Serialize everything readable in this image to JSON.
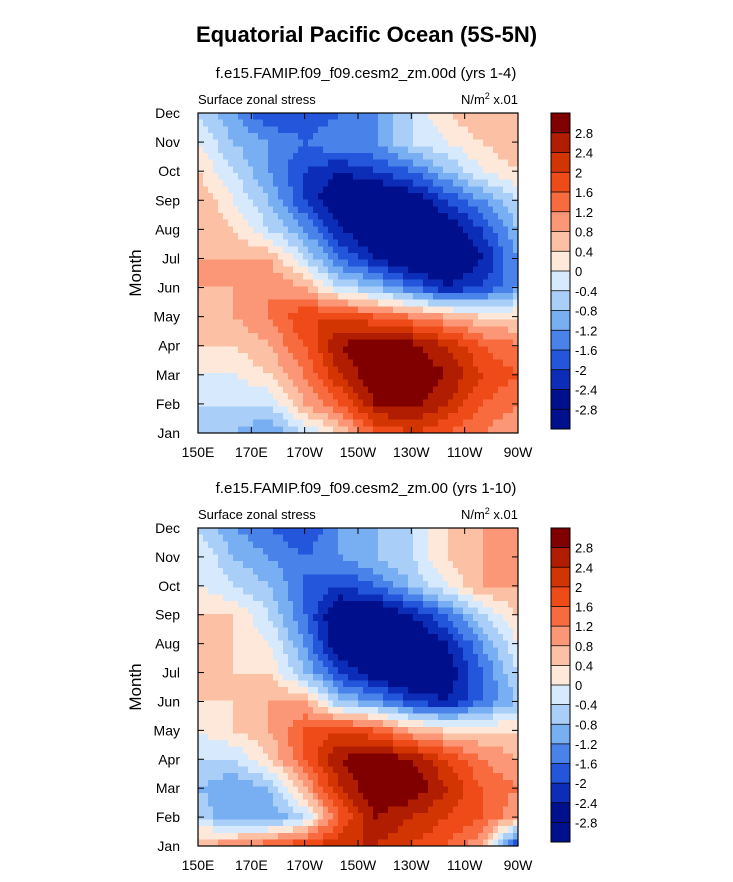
{
  "figure": {
    "title": "Equatorial Pacific Ocean (5S-5N)"
  },
  "chart_data": [
    {
      "type": "heatmap",
      "title": "f.e15.FAMIP.f09_f09.cesm2_zm.00d (yrs 1-4)",
      "left_label": "Surface zonal stress",
      "units_label": "N/m",
      "units_sup": "2",
      "units_suffix": " x.01",
      "ylabel": "Month",
      "xlabel": "",
      "x_ticks": [
        "150E",
        "170E",
        "170W",
        "150W",
        "130W",
        "110W",
        "90W"
      ],
      "y_ticks": [
        "Jan",
        "Feb",
        "Mar",
        "Apr",
        "May",
        "Jun",
        "Jul",
        "Aug",
        "Sep",
        "Oct",
        "Nov",
        "Dec"
      ],
      "legend": {
        "labels": [
          "2.8",
          "2.4",
          "2",
          "1.6",
          "1.2",
          "0.8",
          "0.4",
          "0",
          "-0.4",
          "-0.8",
          "-1.2",
          "-1.6",
          "-2",
          "-2.4",
          "-2.8"
        ],
        "colors": [
          "#800000",
          "#b11d00",
          "#d23502",
          "#ef4b18",
          "#f76b3f",
          "#fb9676",
          "#fcc0a4",
          "#fde8d9",
          "#d7eafd",
          "#a9cff8",
          "#78aef2",
          "#4983ea",
          "#2456dc",
          "#0b2db8",
          "#00108c"
        ],
        "placement": "right"
      },
      "data_values": [
        [
          -0.8,
          -0.8,
          -1.2,
          -0.4,
          0.4,
          1.6,
          2.0,
          1.6,
          1.2,
          0.8
        ],
        [
          -0.4,
          -0.4,
          -0.4,
          0.8,
          1.6,
          2.8,
          3.0,
          2.4,
          1.6,
          1.2
        ],
        [
          0.0,
          0.0,
          0.4,
          1.2,
          2.4,
          3.2,
          3.2,
          2.8,
          2.0,
          1.6
        ],
        [
          0.4,
          0.4,
          0.8,
          1.6,
          2.8,
          3.2,
          3.0,
          2.4,
          1.6,
          1.2
        ],
        [
          0.4,
          0.8,
          1.2,
          2.0,
          2.0,
          1.6,
          1.2,
          0.8,
          0.4,
          0.4
        ],
        [
          0.8,
          0.8,
          1.2,
          0.8,
          -0.4,
          -0.8,
          -1.6,
          -2.4,
          -2.0,
          -1.2
        ],
        [
          0.8,
          0.8,
          0.8,
          -0.4,
          -1.6,
          -2.4,
          -3.0,
          -3.0,
          -2.4,
          -1.2
        ],
        [
          0.8,
          0.4,
          -0.4,
          -1.2,
          -2.4,
          -3.0,
          -3.2,
          -2.8,
          -2.0,
          -0.8
        ],
        [
          0.8,
          0.0,
          -0.8,
          -2.0,
          -3.0,
          -3.2,
          -2.8,
          -2.0,
          -1.2,
          -0.4
        ],
        [
          0.4,
          -0.4,
          -1.2,
          -2.0,
          -2.4,
          -2.0,
          -1.6,
          -0.8,
          0.0,
          0.4
        ],
        [
          0.0,
          -0.8,
          -1.2,
          -1.6,
          -1.2,
          -1.2,
          -0.4,
          0.0,
          0.4,
          0.8
        ],
        [
          -0.4,
          -1.2,
          -2.0,
          -2.0,
          -1.6,
          -1.2,
          -0.4,
          0.4,
          0.8,
          0.8
        ]
      ]
    },
    {
      "type": "heatmap",
      "title": "f.e15.FAMIP.f09_f09.cesm2_zm.00 (yrs 1-10)",
      "left_label": "Surface zonal stress",
      "units_label": "N/m",
      "units_sup": "2",
      "units_suffix": " x.01",
      "ylabel": "Month",
      "xlabel": "",
      "x_ticks": [
        "150E",
        "170E",
        "170W",
        "150W",
        "130W",
        "110W",
        "90W"
      ],
      "y_ticks": [
        "Jan",
        "Feb",
        "Mar",
        "Apr",
        "May",
        "Jun",
        "Jul",
        "Aug",
        "Sep",
        "Oct",
        "Nov",
        "Dec"
      ],
      "legend": {
        "labels": [
          "2.8",
          "2.4",
          "2",
          "1.6",
          "1.2",
          "0.8",
          "0.4",
          "0",
          "-0.4",
          "-0.8",
          "-1.2",
          "-1.6",
          "-2",
          "-2.4",
          "-2.8"
        ],
        "colors": [
          "#800000",
          "#b11d00",
          "#d23502",
          "#ef4b18",
          "#f76b3f",
          "#fb9676",
          "#fcc0a4",
          "#fde8d9",
          "#d7eafd",
          "#a9cff8",
          "#78aef2",
          "#4983ea",
          "#2456dc",
          "#0b2db8",
          "#00108c"
        ],
        "placement": "right"
      },
      "data_values": [
        [
          0.8,
          1.2,
          1.6,
          2.0,
          2.4,
          2.4,
          2.0,
          1.6,
          0.8,
          -2.4
        ],
        [
          -0.4,
          -1.2,
          -1.2,
          -0.4,
          1.6,
          2.8,
          2.4,
          2.0,
          1.6,
          0.8
        ],
        [
          -0.8,
          -1.2,
          -0.8,
          0.8,
          2.4,
          3.2,
          3.2,
          2.4,
          1.6,
          1.2
        ],
        [
          -0.4,
          -0.4,
          0.4,
          1.6,
          2.8,
          3.2,
          2.8,
          2.0,
          1.2,
          0.8
        ],
        [
          0.0,
          0.4,
          0.8,
          1.6,
          2.0,
          1.6,
          0.8,
          0.4,
          0.4,
          0.4
        ],
        [
          0.4,
          0.4,
          0.8,
          0.8,
          -0.8,
          -1.2,
          -2.0,
          -2.4,
          -1.6,
          -0.8
        ],
        [
          0.4,
          0.4,
          0.4,
          -0.8,
          -2.0,
          -2.8,
          -3.2,
          -2.8,
          -1.6,
          -0.4
        ],
        [
          0.4,
          0.4,
          0.0,
          -1.2,
          -3.0,
          -3.2,
          -3.0,
          -2.4,
          -1.2,
          0.0
        ],
        [
          0.4,
          0.4,
          -0.4,
          -1.6,
          -3.0,
          -3.0,
          -2.4,
          -1.6,
          -0.4,
          0.4
        ],
        [
          0.0,
          -0.4,
          -0.8,
          -1.6,
          -2.0,
          -1.6,
          -0.8,
          0.0,
          0.8,
          0.8
        ],
        [
          0.0,
          -0.8,
          -1.2,
          -1.6,
          -1.2,
          -0.8,
          -0.4,
          0.4,
          0.8,
          1.2
        ],
        [
          -0.4,
          -1.2,
          -1.6,
          -2.0,
          -1.2,
          -0.8,
          -0.4,
          0.4,
          0.8,
          1.2
        ]
      ]
    }
  ]
}
